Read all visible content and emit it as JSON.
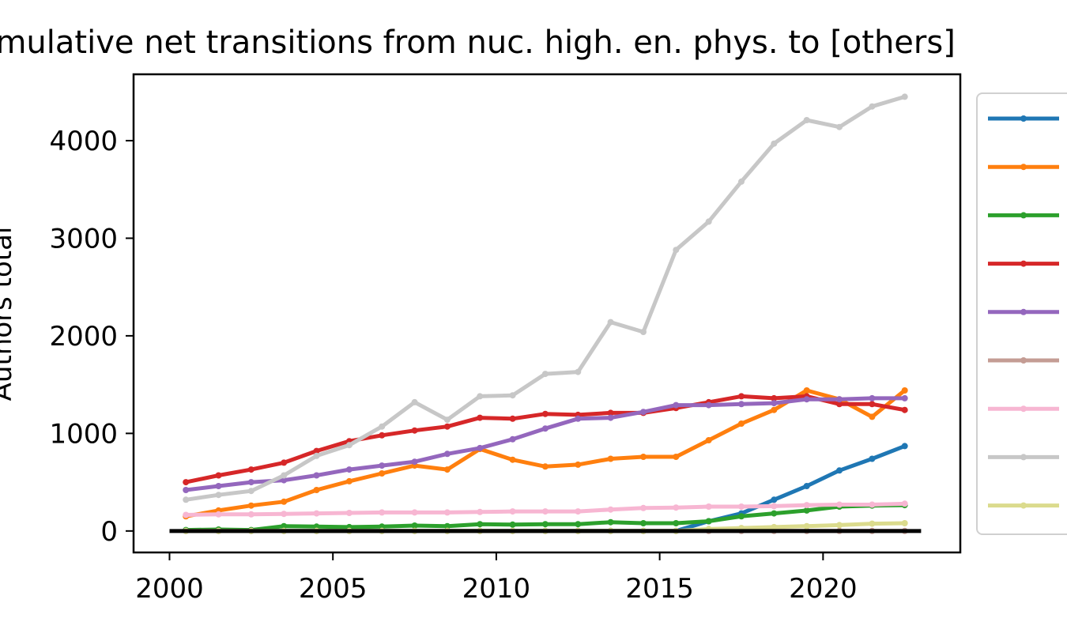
{
  "chart_data": {
    "type": "line",
    "title": "Cumulative net transitions from nuc. high. en. phys. to [others]",
    "xlabel": "",
    "ylabel": "Authors total",
    "xlim": [
      1998.9,
      2024.2
    ],
    "ylim": [
      -220,
      4680
    ],
    "x_ticks": [
      2000,
      2005,
      2010,
      2015,
      2020
    ],
    "y_ticks": [
      0,
      1000,
      2000,
      3000,
      4000
    ],
    "grid": false,
    "legend_position": "outside-right",
    "baseline": {
      "y": 0,
      "x_start": 2000,
      "x_end": 2023,
      "color": "#000000"
    },
    "x": [
      2000.5,
      2001.5,
      2002.5,
      2003.5,
      2004.5,
      2005.5,
      2006.5,
      2007.5,
      2008.5,
      2009.5,
      2010.5,
      2011.5,
      2012.5,
      2013.5,
      2014.5,
      2015.5,
      2016.5,
      2017.5,
      2018.5,
      2019.5,
      2020.5,
      2021.5,
      2022.5
    ],
    "series": [
      {
        "color": "#1f77b4",
        "values": [
          0,
          0,
          0,
          0,
          0,
          0,
          0,
          0,
          0,
          0,
          0,
          0,
          0,
          0,
          0,
          0,
          100,
          180,
          320,
          460,
          620,
          740,
          870
        ]
      },
      {
        "color": "#ff7f0e",
        "values": [
          150,
          210,
          260,
          300,
          420,
          510,
          590,
          670,
          630,
          840,
          730,
          660,
          680,
          740,
          760,
          760,
          930,
          1100,
          1240,
          1440,
          1350,
          1170,
          1440
        ]
      },
      {
        "color": "#2ca02c",
        "values": [
          10,
          15,
          10,
          50,
          45,
          40,
          45,
          55,
          50,
          70,
          65,
          70,
          70,
          90,
          80,
          80,
          100,
          150,
          180,
          210,
          250,
          260,
          265
        ]
      },
      {
        "color": "#d62728",
        "values": [
          500,
          570,
          630,
          700,
          820,
          920,
          980,
          1030,
          1070,
          1160,
          1150,
          1200,
          1190,
          1210,
          1210,
          1260,
          1320,
          1380,
          1360,
          1380,
          1300,
          1300,
          1240
        ]
      },
      {
        "color": "#9467bd",
        "values": [
          420,
          460,
          500,
          520,
          570,
          630,
          670,
          710,
          790,
          850,
          940,
          1050,
          1150,
          1160,
          1220,
          1290,
          1290,
          1300,
          1310,
          1350,
          1350,
          1360,
          1360
        ]
      },
      {
        "color": "#c49c94",
        "values": [
          0,
          0,
          0,
          0,
          0,
          0,
          0,
          0,
          0,
          0,
          0,
          0,
          0,
          0,
          0,
          0,
          0,
          0,
          0,
          0,
          0,
          0,
          0
        ]
      },
      {
        "color": "#f7b6d2",
        "values": [
          165,
          170,
          170,
          175,
          180,
          185,
          190,
          190,
          190,
          195,
          200,
          200,
          200,
          220,
          235,
          240,
          250,
          250,
          255,
          265,
          270,
          270,
          280
        ]
      },
      {
        "color": "#c7c7c7",
        "values": [
          320,
          370,
          410,
          570,
          770,
          880,
          1070,
          1320,
          1140,
          1380,
          1390,
          1610,
          1630,
          2140,
          2040,
          2880,
          3170,
          3580,
          3970,
          4210,
          4140,
          4350,
          4450
        ]
      },
      {
        "color": "#dbdb8d",
        "values": [
          0,
          0,
          0,
          0,
          0,
          0,
          0,
          0,
          0,
          0,
          0,
          0,
          0,
          0,
          0,
          0,
          20,
          30,
          40,
          50,
          60,
          75,
          80
        ]
      }
    ]
  }
}
